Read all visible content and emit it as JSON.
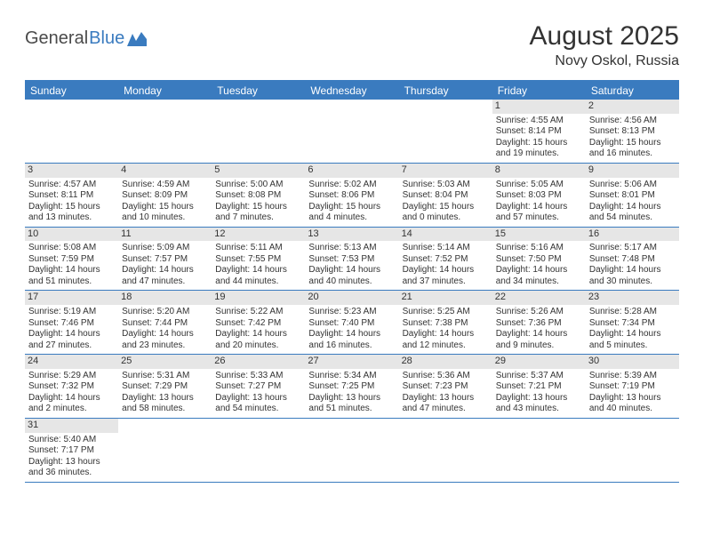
{
  "brand": {
    "general": "General",
    "blue": "Blue"
  },
  "title": "August 2025",
  "location": "Novy Oskol, Russia",
  "colors": {
    "primary": "#3a7bbf",
    "daynum_bg": "#e6e6e6",
    "text": "#333333",
    "background": "#ffffff"
  },
  "dayHeaders": [
    "Sunday",
    "Monday",
    "Tuesday",
    "Wednesday",
    "Thursday",
    "Friday",
    "Saturday"
  ],
  "weeks": [
    [
      {
        "n": "",
        "empty": true
      },
      {
        "n": "",
        "empty": true
      },
      {
        "n": "",
        "empty": true
      },
      {
        "n": "",
        "empty": true
      },
      {
        "n": "",
        "empty": true
      },
      {
        "n": "1",
        "sunrise": "4:55 AM",
        "sunset": "8:14 PM",
        "daylight": "15 hours and 19 minutes."
      },
      {
        "n": "2",
        "sunrise": "4:56 AM",
        "sunset": "8:13 PM",
        "daylight": "15 hours and 16 minutes."
      }
    ],
    [
      {
        "n": "3",
        "sunrise": "4:57 AM",
        "sunset": "8:11 PM",
        "daylight": "15 hours and 13 minutes."
      },
      {
        "n": "4",
        "sunrise": "4:59 AM",
        "sunset": "8:09 PM",
        "daylight": "15 hours and 10 minutes."
      },
      {
        "n": "5",
        "sunrise": "5:00 AM",
        "sunset": "8:08 PM",
        "daylight": "15 hours and 7 minutes."
      },
      {
        "n": "6",
        "sunrise": "5:02 AM",
        "sunset": "8:06 PM",
        "daylight": "15 hours and 4 minutes."
      },
      {
        "n": "7",
        "sunrise": "5:03 AM",
        "sunset": "8:04 PM",
        "daylight": "15 hours and 0 minutes."
      },
      {
        "n": "8",
        "sunrise": "5:05 AM",
        "sunset": "8:03 PM",
        "daylight": "14 hours and 57 minutes."
      },
      {
        "n": "9",
        "sunrise": "5:06 AM",
        "sunset": "8:01 PM",
        "daylight": "14 hours and 54 minutes."
      }
    ],
    [
      {
        "n": "10",
        "sunrise": "5:08 AM",
        "sunset": "7:59 PM",
        "daylight": "14 hours and 51 minutes."
      },
      {
        "n": "11",
        "sunrise": "5:09 AM",
        "sunset": "7:57 PM",
        "daylight": "14 hours and 47 minutes."
      },
      {
        "n": "12",
        "sunrise": "5:11 AM",
        "sunset": "7:55 PM",
        "daylight": "14 hours and 44 minutes."
      },
      {
        "n": "13",
        "sunrise": "5:13 AM",
        "sunset": "7:53 PM",
        "daylight": "14 hours and 40 minutes."
      },
      {
        "n": "14",
        "sunrise": "5:14 AM",
        "sunset": "7:52 PM",
        "daylight": "14 hours and 37 minutes."
      },
      {
        "n": "15",
        "sunrise": "5:16 AM",
        "sunset": "7:50 PM",
        "daylight": "14 hours and 34 minutes."
      },
      {
        "n": "16",
        "sunrise": "5:17 AM",
        "sunset": "7:48 PM",
        "daylight": "14 hours and 30 minutes."
      }
    ],
    [
      {
        "n": "17",
        "sunrise": "5:19 AM",
        "sunset": "7:46 PM",
        "daylight": "14 hours and 27 minutes."
      },
      {
        "n": "18",
        "sunrise": "5:20 AM",
        "sunset": "7:44 PM",
        "daylight": "14 hours and 23 minutes."
      },
      {
        "n": "19",
        "sunrise": "5:22 AM",
        "sunset": "7:42 PM",
        "daylight": "14 hours and 20 minutes."
      },
      {
        "n": "20",
        "sunrise": "5:23 AM",
        "sunset": "7:40 PM",
        "daylight": "14 hours and 16 minutes."
      },
      {
        "n": "21",
        "sunrise": "5:25 AM",
        "sunset": "7:38 PM",
        "daylight": "14 hours and 12 minutes."
      },
      {
        "n": "22",
        "sunrise": "5:26 AM",
        "sunset": "7:36 PM",
        "daylight": "14 hours and 9 minutes."
      },
      {
        "n": "23",
        "sunrise": "5:28 AM",
        "sunset": "7:34 PM",
        "daylight": "14 hours and 5 minutes."
      }
    ],
    [
      {
        "n": "24",
        "sunrise": "5:29 AM",
        "sunset": "7:32 PM",
        "daylight": "14 hours and 2 minutes."
      },
      {
        "n": "25",
        "sunrise": "5:31 AM",
        "sunset": "7:29 PM",
        "daylight": "13 hours and 58 minutes."
      },
      {
        "n": "26",
        "sunrise": "5:33 AM",
        "sunset": "7:27 PM",
        "daylight": "13 hours and 54 minutes."
      },
      {
        "n": "27",
        "sunrise": "5:34 AM",
        "sunset": "7:25 PM",
        "daylight": "13 hours and 51 minutes."
      },
      {
        "n": "28",
        "sunrise": "5:36 AM",
        "sunset": "7:23 PM",
        "daylight": "13 hours and 47 minutes."
      },
      {
        "n": "29",
        "sunrise": "5:37 AM",
        "sunset": "7:21 PM",
        "daylight": "13 hours and 43 minutes."
      },
      {
        "n": "30",
        "sunrise": "5:39 AM",
        "sunset": "7:19 PM",
        "daylight": "13 hours and 40 minutes."
      }
    ],
    [
      {
        "n": "31",
        "sunrise": "5:40 AM",
        "sunset": "7:17 PM",
        "daylight": "13 hours and 36 minutes."
      },
      {
        "n": "",
        "empty": true
      },
      {
        "n": "",
        "empty": true
      },
      {
        "n": "",
        "empty": true
      },
      {
        "n": "",
        "empty": true
      },
      {
        "n": "",
        "empty": true
      },
      {
        "n": "",
        "empty": true
      }
    ]
  ],
  "labels": {
    "sunrise": "Sunrise: ",
    "sunset": "Sunset: ",
    "daylight": "Daylight: "
  }
}
